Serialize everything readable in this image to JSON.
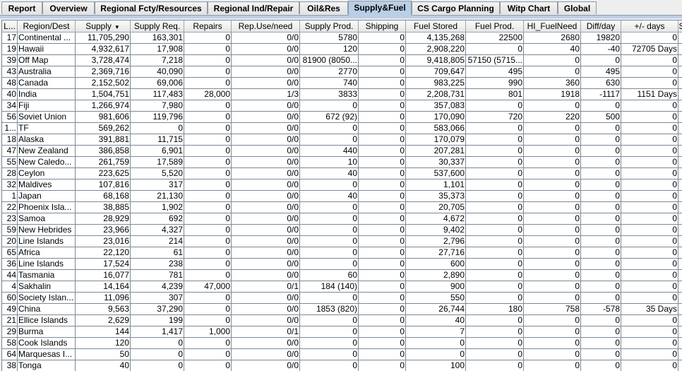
{
  "tabs": [
    {
      "label": "Report"
    },
    {
      "label": "Overview"
    },
    {
      "label": "Regional Fcty/Resources"
    },
    {
      "label": "Regional Ind/Repair"
    },
    {
      "label": "Oil&Res"
    },
    {
      "label": "Supply&Fuel",
      "selected": true
    },
    {
      "label": "CS Cargo Planning"
    },
    {
      "label": "Witp Chart"
    },
    {
      "label": "Global"
    }
  ],
  "colors": {
    "selected_tab": "#b8cfe5",
    "grid": "#7a8a99"
  },
  "table": {
    "sort_column": "Supply",
    "sort_indicator_icon": "sort-descending-icon",
    "columns": [
      "L...",
      "Region/Dest",
      "Supply",
      "Supply Req.",
      "Repairs",
      "Rep.Use/need",
      "Supply Prod.",
      "Shipping",
      "Fuel Stored",
      "Fuel Prod.",
      "HI_FuelNeed",
      "Diff/day",
      "+/- days",
      "S"
    ],
    "rows": [
      [
        "17",
        "Continental ...",
        "11,705,290",
        "163,301",
        "0",
        "0/0",
        "5780",
        "0",
        "4,135,268",
        "22500",
        "2680",
        "19820",
        "0"
      ],
      [
        "19",
        "Hawaii",
        "4,932,617",
        "17,908",
        "0",
        "0/0",
        "120",
        "0",
        "2,908,220",
        "0",
        "40",
        "-40",
        "72705 Days"
      ],
      [
        "39",
        "Off Map",
        "3,728,474",
        "7,218",
        "0",
        "0/0",
        "81900 (8050...",
        "0",
        "9,418,805",
        "57150 (5715...",
        "0",
        "0",
        "0"
      ],
      [
        "43",
        "Australia",
        "2,369,716",
        "40,090",
        "0",
        "0/0",
        "2770",
        "0",
        "709,647",
        "495",
        "0",
        "495",
        "0"
      ],
      [
        "48",
        "Canada",
        "2,152,502",
        "69,006",
        "0",
        "0/0",
        "740",
        "0",
        "983,225",
        "990",
        "360",
        "630",
        "0"
      ],
      [
        "40",
        "India",
        "1,504,751",
        "117,483",
        "28,000",
        "1/3",
        "3833",
        "0",
        "2,208,731",
        "801",
        "1918",
        "-1117",
        "1151 Days"
      ],
      [
        "34",
        "Fiji",
        "1,266,974",
        "7,980",
        "0",
        "0/0",
        "0",
        "0",
        "357,083",
        "0",
        "0",
        "0",
        "0"
      ],
      [
        "56",
        "Soviet Union",
        "981,606",
        "119,796",
        "0",
        "0/0",
        "672 (92)",
        "0",
        "170,090",
        "720",
        "220",
        "500",
        "0"
      ],
      [
        "1...",
        "TF",
        "569,262",
        "0",
        "0",
        "0/0",
        "0",
        "0",
        "583,066",
        "0",
        "0",
        "0",
        "0"
      ],
      [
        "18",
        "Alaska",
        "391,881",
        "11,715",
        "0",
        "0/0",
        "0",
        "0",
        "170,079",
        "0",
        "0",
        "0",
        "0"
      ],
      [
        "47",
        "New Zealand",
        "386,858",
        "6,901",
        "0",
        "0/0",
        "440",
        "0",
        "207,281",
        "0",
        "0",
        "0",
        "0"
      ],
      [
        "55",
        "New Caledo...",
        "261,759",
        "17,589",
        "0",
        "0/0",
        "10",
        "0",
        "30,337",
        "0",
        "0",
        "0",
        "0"
      ],
      [
        "28",
        "Ceylon",
        "223,625",
        "5,520",
        "0",
        "0/0",
        "40",
        "0",
        "537,600",
        "0",
        "0",
        "0",
        "0"
      ],
      [
        "32",
        "Maldives",
        "107,816",
        "317",
        "0",
        "0/0",
        "0",
        "0",
        "1,101",
        "0",
        "0",
        "0",
        "0"
      ],
      [
        "1",
        "Japan",
        "68,168",
        "21,130",
        "0",
        "0/0",
        "40",
        "0",
        "35,373",
        "0",
        "0",
        "0",
        "0"
      ],
      [
        "22",
        "Phoenix Isla...",
        "38,885",
        "1,902",
        "0",
        "0/0",
        "0",
        "0",
        "20,705",
        "0",
        "0",
        "0",
        "0"
      ],
      [
        "23",
        "Samoa",
        "28,929",
        "692",
        "0",
        "0/0",
        "0",
        "0",
        "4,672",
        "0",
        "0",
        "0",
        "0"
      ],
      [
        "59",
        "New Hebrides",
        "23,966",
        "4,327",
        "0",
        "0/0",
        "0",
        "0",
        "9,402",
        "0",
        "0",
        "0",
        "0"
      ],
      [
        "20",
        "Line Islands",
        "23,016",
        "214",
        "0",
        "0/0",
        "0",
        "0",
        "2,796",
        "0",
        "0",
        "0",
        "0"
      ],
      [
        "65",
        "Africa",
        "22,120",
        "61",
        "0",
        "0/0",
        "0",
        "0",
        "27,716",
        "0",
        "0",
        "0",
        "0"
      ],
      [
        "36",
        "Line Islands",
        "17,524",
        "238",
        "0",
        "0/0",
        "0",
        "0",
        "600",
        "0",
        "0",
        "0",
        "0"
      ],
      [
        "44",
        "Tasmania",
        "16,077",
        "781",
        "0",
        "0/0",
        "60",
        "0",
        "2,890",
        "0",
        "0",
        "0",
        "0"
      ],
      [
        "4",
        "Sakhalin",
        "14,164",
        "4,239",
        "47,000",
        "0/1",
        "184 (140)",
        "0",
        "900",
        "0",
        "0",
        "0",
        "0"
      ],
      [
        "60",
        "Society Islan...",
        "11,096",
        "307",
        "0",
        "0/0",
        "0",
        "0",
        "550",
        "0",
        "0",
        "0",
        "0"
      ],
      [
        "49",
        "China",
        "9,563",
        "37,290",
        "0",
        "0/0",
        "1853 (820)",
        "0",
        "26,744",
        "180",
        "758",
        "-578",
        "35 Days"
      ],
      [
        "21",
        "Ellice Islands",
        "2,629",
        "199",
        "0",
        "0/0",
        "0",
        "0",
        "40",
        "0",
        "0",
        "0",
        "0"
      ],
      [
        "29",
        "Burma",
        "144",
        "1,417",
        "1,000",
        "0/1",
        "0",
        "0",
        "7",
        "0",
        "0",
        "0",
        "0"
      ],
      [
        "58",
        "Cook Islands",
        "120",
        "0",
        "0",
        "0/0",
        "0",
        "0",
        "0",
        "0",
        "0",
        "0",
        "0"
      ],
      [
        "64",
        "Marquesas I...",
        "50",
        "0",
        "0",
        "0/0",
        "0",
        "0",
        "0",
        "0",
        "0",
        "0",
        "0"
      ],
      [
        "38",
        "Tonga",
        "40",
        "0",
        "0",
        "0/0",
        "0",
        "0",
        "100",
        "0",
        "0",
        "0",
        "0"
      ]
    ]
  }
}
